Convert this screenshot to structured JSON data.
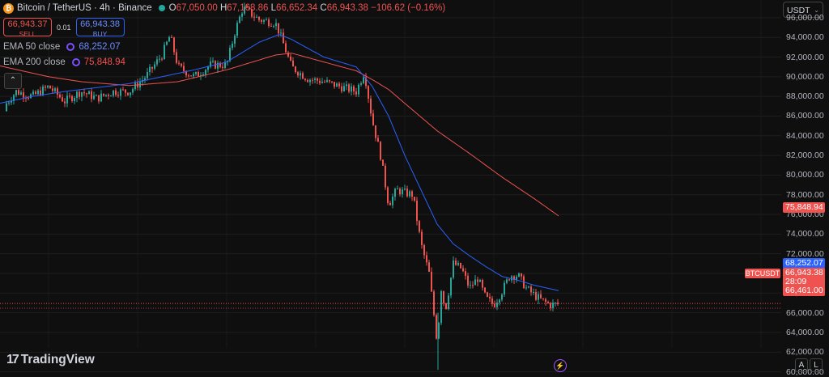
{
  "header": {
    "logo_glyph": "₿",
    "title": "Bitcoin / TetherUS · 4h · Binance",
    "ohlc": {
      "o_key": "O",
      "o": "67,050.00",
      "h_key": "H",
      "h": "67,168.86",
      "l_key": "L",
      "l": "66,652.34",
      "c_key": "C",
      "c": "66,943.38",
      "change": "−106.62 (−0.16%)"
    }
  },
  "trade": {
    "sell_price": "66,943.37",
    "sell_label": "SELL",
    "spread": "0.01",
    "buy_price": "66,943.38",
    "buy_label": "BUY"
  },
  "indicators": [
    {
      "name": "EMA 50 close",
      "value": "68,252.07",
      "color": "#2962ff"
    },
    {
      "name": "EMA 200 close",
      "value": "75,848.94",
      "color": "#ef5350"
    }
  ],
  "collapse_glyph": "⌃",
  "currency": "USDT",
  "symbol_tag": "BTCUSDT",
  "price_tags": {
    "ema50": "68,252.07",
    "last": "66,943.38",
    "countdown": "28:09",
    "low_line": "66,461.00",
    "ema200": "75,848.94"
  },
  "branding": {
    "logo_mark": "17",
    "name": "TradingView"
  },
  "bottom": {
    "bolt": "⚡",
    "a1": "A",
    "a2": "L"
  },
  "colors": {
    "up": "#26a69a",
    "down": "#ef5350",
    "ema50": "#2962ff",
    "ema200": "#ef5350",
    "background": "#0f0f0f"
  },
  "chart_data": {
    "type": "line",
    "title": "Bitcoin / TetherUS · 4h · Binance",
    "ylim": [
      59800,
      97800
    ],
    "y_ticks": [
      "96,000.00",
      "94,000.00",
      "92,000.00",
      "90,000.00",
      "88,000.00",
      "86,000.00",
      "84,000.00",
      "82,000.00",
      "80,000.00",
      "78,000.00",
      "76,000.00",
      "74,000.00",
      "72,000.00",
      "70,000.00",
      "68,000.00",
      "66,000.00",
      "64,000.00",
      "62,000.00",
      "60,000.00"
    ],
    "series": [
      {
        "name": "BTCUSDT",
        "x": [
          0,
          20,
          40,
          60,
          80,
          100,
          120,
          140,
          160,
          180,
          200,
          210,
          220,
          240,
          260,
          280,
          290,
          300,
          320,
          340,
          345,
          360,
          380,
          400,
          420,
          440,
          450,
          460,
          470,
          480,
          490,
          500,
          510,
          520,
          530,
          535,
          540,
          545,
          550,
          560,
          570,
          580,
          590,
          600,
          610,
          620,
          630,
          640,
          650,
          660,
          670,
          680,
          690
        ],
        "values": [
          86500,
          88500,
          88000,
          89000,
          87500,
          88500,
          87800,
          88500,
          88500,
          90000,
          92200,
          94200,
          91000,
          90000,
          91200,
          91200,
          94500,
          97000,
          95800,
          95500,
          94500,
          91000,
          89800,
          89500,
          89000,
          88500,
          90500,
          85500,
          82000,
          77000,
          78500,
          78200,
          78000,
          73000,
          70000,
          66500,
          63000,
          68500,
          66200,
          71000,
          70500,
          68500,
          69500,
          67500,
          66800,
          68200,
          69800,
          69800,
          68500,
          67800,
          67200,
          66800,
          66900
        ]
      },
      {
        "name": "EMA 50 close",
        "x": [
          0,
          40,
          80,
          120,
          160,
          200,
          240,
          280,
          320,
          345,
          360,
          400,
          440,
          460,
          480,
          500,
          520,
          540,
          560,
          580,
          600,
          620,
          640,
          660,
          690
        ],
        "values": [
          87300,
          88000,
          88500,
          88900,
          89300,
          90000,
          90700,
          91500,
          93500,
          94300,
          93800,
          92000,
          91000,
          89000,
          86000,
          82000,
          78500,
          75000,
          73000,
          71800,
          70700,
          69700,
          69300,
          68800,
          68252
        ]
      },
      {
        "name": "EMA 200 close",
        "x": [
          0,
          60,
          100,
          160,
          220,
          280,
          340,
          360,
          400,
          440,
          460,
          480,
          500,
          540,
          580,
          620,
          660,
          690
        ],
        "values": [
          91100,
          90000,
          89500,
          89100,
          89500,
          90700,
          92200,
          92400,
          91500,
          90600,
          89700,
          88700,
          87300,
          84500,
          82200,
          79800,
          77600,
          75849
        ]
      }
    ],
    "price_lines": {
      "last": 66943.38,
      "low_line": 66461.0,
      "ema50_last": 68252.07,
      "ema200_last": 75848.94
    }
  }
}
